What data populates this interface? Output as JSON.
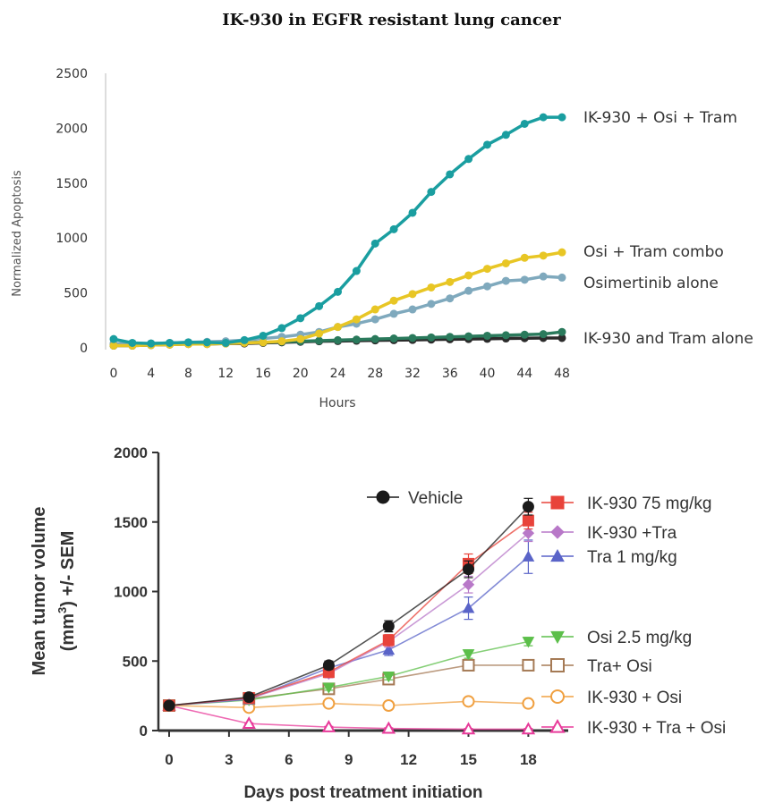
{
  "page_title": "IK-930 in EGFR resistant lung cancer",
  "chart_data": [
    {
      "type": "line",
      "title": "",
      "xlabel": "Hours",
      "ylabel": "Normalized Apoptosis",
      "xlim": [
        0,
        48
      ],
      "ylim": [
        0,
        2500
      ],
      "xticks": [
        0,
        4,
        8,
        12,
        16,
        20,
        24,
        28,
        32,
        36,
        40,
        44,
        48
      ],
      "yticks": [
        0,
        500,
        1000,
        1500,
        2000,
        2500
      ],
      "grid": false,
      "legend": "direct labels at right end of lines",
      "x": [
        0,
        2,
        4,
        6,
        8,
        10,
        12,
        14,
        16,
        18,
        20,
        22,
        24,
        26,
        28,
        30,
        32,
        34,
        36,
        38,
        40,
        42,
        44,
        46,
        48
      ],
      "series": [
        {
          "name": "IK-930 + Osi + Tram",
          "color": "#1a9ea0",
          "values": [
            80,
            45,
            40,
            45,
            50,
            50,
            45,
            70,
            110,
            180,
            270,
            380,
            510,
            700,
            950,
            1080,
            1230,
            1420,
            1580,
            1720,
            1850,
            1940,
            2040,
            2100,
            2100
          ]
        },
        {
          "name": "Osi + Tram combo",
          "color": "#e8c625",
          "values": [
            20,
            20,
            25,
            30,
            35,
            35,
            40,
            45,
            50,
            60,
            80,
            130,
            190,
            260,
            350,
            430,
            490,
            550,
            600,
            660,
            720,
            770,
            820,
            840,
            870
          ]
        },
        {
          "name": "Osimertinib alone",
          "color": "#7fa9bd",
          "values": [
            40,
            35,
            40,
            45,
            50,
            55,
            60,
            70,
            85,
            100,
            120,
            145,
            190,
            220,
            260,
            310,
            350,
            400,
            450,
            520,
            560,
            610,
            620,
            650,
            640
          ]
        },
        {
          "name": "IK-930 and Tram alone",
          "color": "#2a7a5c",
          "values": [
            25,
            25,
            30,
            35,
            40,
            40,
            45,
            50,
            50,
            55,
            60,
            65,
            70,
            75,
            80,
            85,
            90,
            95,
            100,
            105,
            110,
            115,
            120,
            125,
            145
          ]
        },
        {
          "name": "",
          "color": "#2b2b2b",
          "values": [
            20,
            20,
            25,
            30,
            35,
            35,
            40,
            40,
            45,
            50,
            55,
            60,
            62,
            65,
            68,
            70,
            72,
            75,
            78,
            80,
            82,
            85,
            88,
            90,
            90
          ]
        }
      ]
    },
    {
      "type": "line",
      "title": "",
      "xlabel": "Days post treatment initiation",
      "ylabel_line1": "Mean tumor volume",
      "ylabel_line2_pre": "(mm",
      "ylabel_line2_sup": "3",
      "ylabel_line2_post": ") +/- SEM",
      "xlim": [
        0,
        20
      ],
      "ylim": [
        0,
        2000
      ],
      "xticks": [
        0,
        3,
        6,
        9,
        12,
        15,
        18
      ],
      "yticks": [
        0,
        500,
        1000,
        1500,
        2000
      ],
      "grid": false,
      "legend": "right",
      "x": [
        0,
        4,
        8,
        11,
        15,
        18
      ],
      "series": [
        {
          "name": "Vehicle",
          "color": "#1a1a1a",
          "marker": "circle-filled",
          "values": [
            180,
            240,
            470,
            750,
            1160,
            1610
          ],
          "err": [
            0,
            20,
            30,
            40,
            60,
            60
          ]
        },
        {
          "name": "IK-930 75 mg/kg",
          "color": "#e8433a",
          "marker": "square-filled",
          "values": [
            180,
            235,
            420,
            650,
            1200,
            1510
          ],
          "err": [
            0,
            20,
            30,
            40,
            70,
            60
          ]
        },
        {
          "name": "IK-930 +Tra",
          "color": "#b878c8",
          "marker": "diamond-filled",
          "values": [
            180,
            230,
            410,
            640,
            1050,
            1420
          ],
          "err": [
            0,
            20,
            30,
            40,
            60,
            60
          ]
        },
        {
          "name": "Tra 1 mg/kg",
          "color": "#5a64c8",
          "marker": "triangle-up-filled",
          "values": [
            180,
            225,
            450,
            580,
            880,
            1250
          ],
          "err": [
            0,
            20,
            30,
            40,
            80,
            120
          ]
        },
        {
          "name": "Osi 2.5 mg/kg",
          "color": "#5cbf4a",
          "marker": "triangle-down-filled",
          "values": [
            180,
            220,
            310,
            390,
            550,
            640
          ],
          "err": [
            0,
            15,
            20,
            25,
            30,
            30
          ]
        },
        {
          "name": "Tra+ Osi",
          "color": "#a57a55",
          "marker": "square-open",
          "values": [
            180,
            230,
            300,
            370,
            470,
            470
          ],
          "err": [
            0,
            15,
            20,
            25,
            30,
            30
          ]
        },
        {
          "name": "IK-930 + Osi",
          "color": "#f0a040",
          "marker": "circle-open",
          "values": [
            180,
            165,
            195,
            180,
            210,
            195
          ],
          "err": [
            0,
            10,
            15,
            15,
            15,
            15
          ]
        },
        {
          "name": "IK-930 + Tra + Osi",
          "color": "#e83a9a",
          "marker": "triangle-up-open",
          "values": [
            180,
            50,
            25,
            15,
            10,
            10
          ],
          "err": [
            0,
            5,
            5,
            5,
            5,
            5
          ]
        }
      ]
    }
  ]
}
